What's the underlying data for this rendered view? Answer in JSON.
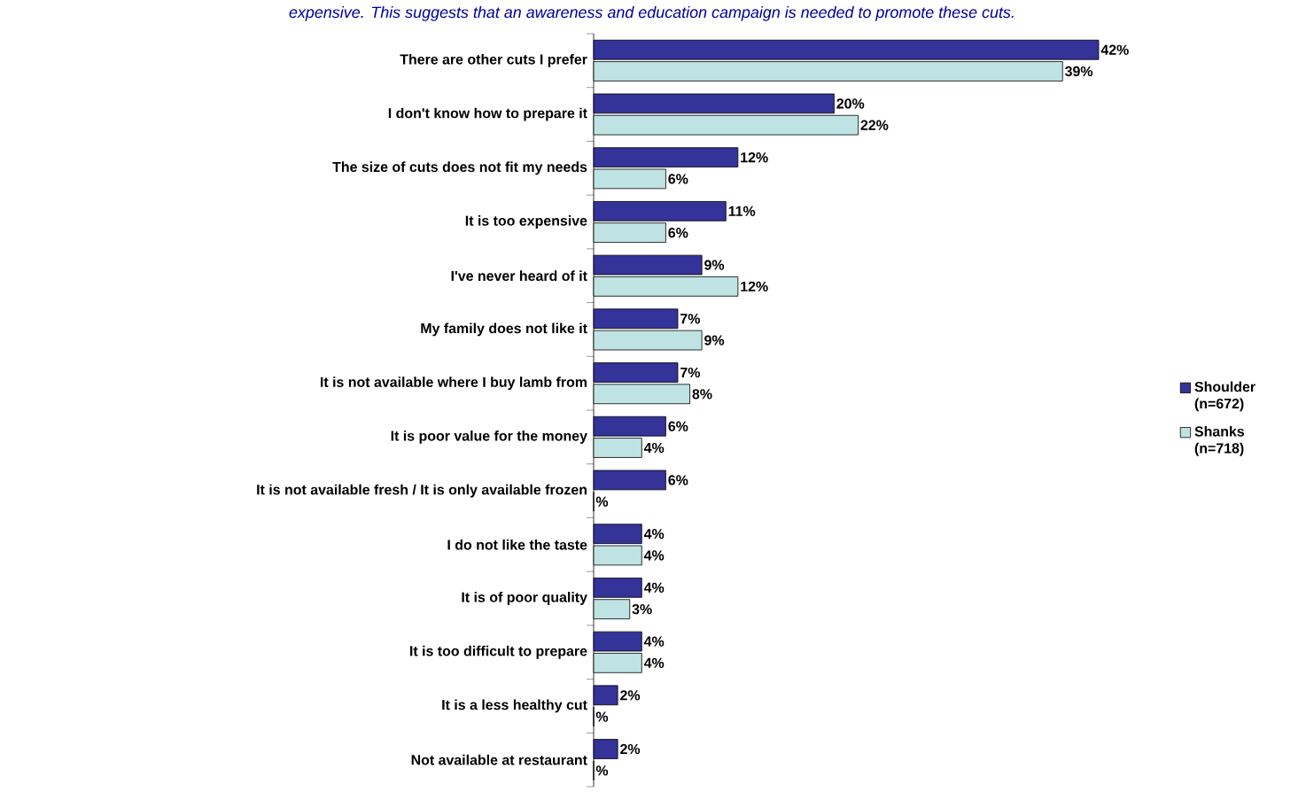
{
  "chart_data": {
    "type": "bar",
    "orientation": "horizontal",
    "subtitle": "expensive. This suggests that an awareness and education campaign is needed to promote these cuts.",
    "categories": [
      "There are other cuts I prefer",
      "I don't know how to prepare it",
      "The size of cuts does not fit my needs",
      "It is too expensive",
      "I've never heard of it",
      "My family does not like it",
      "It is not available where I buy lamb from",
      "It is poor value for the money",
      "It is not available fresh / It is only available frozen",
      "I do not like the taste",
      "It is of poor quality",
      "It is too difficult to prepare",
      "It is a less healthy cut",
      "Not available at restaurant"
    ],
    "series": [
      {
        "name": "Shoulder (n=672)",
        "color": "#333399",
        "values": [
          42,
          20,
          12,
          11,
          9,
          7,
          7,
          6,
          6,
          4,
          4,
          4,
          2,
          2
        ],
        "value_labels": [
          "42%",
          "20%",
          "12%",
          "11%",
          "9%",
          "7%",
          "7%",
          "6%",
          "6%",
          "4%",
          "4%",
          "4%",
          "2%",
          "2%"
        ]
      },
      {
        "name": "Shanks (n=718)",
        "color": "#bfe3e3",
        "values": [
          39,
          22,
          6,
          6,
          12,
          9,
          8,
          4,
          0,
          4,
          3,
          4,
          0,
          0
        ],
        "value_labels": [
          "39%",
          "22%",
          "6%",
          "6%",
          "12%",
          "9%",
          "8%",
          "4%",
          "%",
          "4%",
          "3%",
          "4%",
          "%",
          "%"
        ]
      }
    ],
    "legend": "right"
  }
}
